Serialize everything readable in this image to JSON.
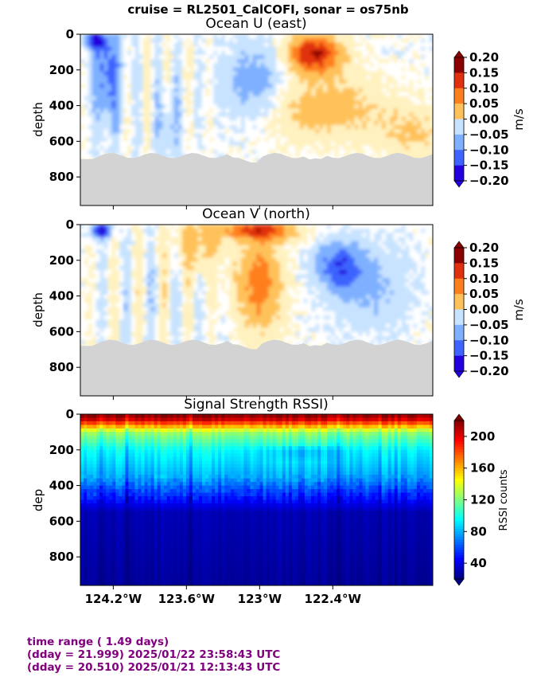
{
  "figure": {
    "suptitle": "cruise = RL2501_CalCOFI,  sonar = os75nb",
    "footer": {
      "line1": "time range ( 1.49 days)",
      "line2": "(dday = 21.999) 2025/01/22 23:58:43 UTC",
      "line3": "(dday = 20.510) 2025/01/21 12:13:43 UTC"
    }
  },
  "colors": {
    "land": "#d3d3d3",
    "footer_text": "#800080",
    "u_v_levels": [
      "#2200dd",
      "#3e63ff",
      "#7eb0ff",
      "#c8e3ff",
      "#ffffff",
      "#fff2c0",
      "#ffc25a",
      "#ff7f1e",
      "#e03010",
      "#8b0000"
    ],
    "rssi_colormap": "jet"
  },
  "chart_data": [
    {
      "type": "heatmap",
      "title": "Ocean U (east)",
      "ylabel": "depth",
      "ylim": [
        960,
        0
      ],
      "yticks": [
        0,
        200,
        400,
        600,
        800
      ],
      "xlim": [
        -124.47,
        -121.58
      ],
      "xticks": [],
      "colorbar": {
        "label": "m/s",
        "range": [
          -0.2,
          0.2
        ],
        "ticks": [
          "0.20",
          "0.15",
          "0.10",
          "0.05",
          "0.00",
          "−0.05",
          "−0.10",
          "−0.15",
          "−0.20"
        ]
      },
      "bottom_depth_approx": 680,
      "features": [
        {
          "kind": "eastward core",
          "lon": -122.55,
          "depth": 120,
          "value": 0.2
        },
        {
          "kind": "westward patch",
          "lon": -124.2,
          "depth": 250,
          "value": -0.12
        },
        {
          "kind": "westward band",
          "lon": -123.05,
          "depth": 300,
          "value": -0.07
        }
      ]
    },
    {
      "type": "heatmap",
      "title": "Ocean V (north)",
      "ylabel": "depth",
      "ylim": [
        960,
        0
      ],
      "yticks": [
        0,
        200,
        400,
        600,
        800
      ],
      "xlim": [
        -124.47,
        -121.58
      ],
      "xticks": [],
      "colorbar": {
        "label": "m/s",
        "range": [
          -0.2,
          0.2
        ],
        "ticks": [
          "0.20",
          "0.15",
          "0.10",
          "0.05",
          "0.00",
          "−0.05",
          "−0.10",
          "−0.15",
          "−0.20"
        ]
      },
      "bottom_depth_approx": 660,
      "features": [
        {
          "kind": "northward core",
          "lon": -123.0,
          "depth": 350,
          "value": 0.12
        },
        {
          "kind": "southward patch",
          "lon": -122.4,
          "depth": 220,
          "value": -0.13
        },
        {
          "kind": "southward surface",
          "lon": -124.3,
          "depth": 40,
          "value": -0.2
        }
      ]
    },
    {
      "type": "heatmap",
      "title": "Signal Strength RSSI)",
      "ylabel": "dep",
      "ylim": [
        960,
        0
      ],
      "yticks": [
        0,
        200,
        400,
        600,
        800
      ],
      "xlim": [
        -124.47,
        -121.58
      ],
      "xticks": [
        -124.2,
        -123.6,
        -123.0,
        -122.4
      ],
      "xticklabels": [
        "124.2°W",
        "123.6°W",
        "123°W",
        "122.4°W"
      ],
      "colorbar": {
        "label": "RSSI counts",
        "range": [
          20,
          220
        ],
        "ticks": [
          "200",
          "160",
          "120",
          "80",
          "40"
        ]
      },
      "profile": [
        {
          "depth": 20,
          "value": 215
        },
        {
          "depth": 100,
          "value": 125
        },
        {
          "depth": 200,
          "value": 95
        },
        {
          "depth": 350,
          "value": 78
        },
        {
          "depth": 430,
          "value": 58
        },
        {
          "depth": 550,
          "value": 30
        },
        {
          "depth": 960,
          "value": 25
        }
      ]
    }
  ]
}
